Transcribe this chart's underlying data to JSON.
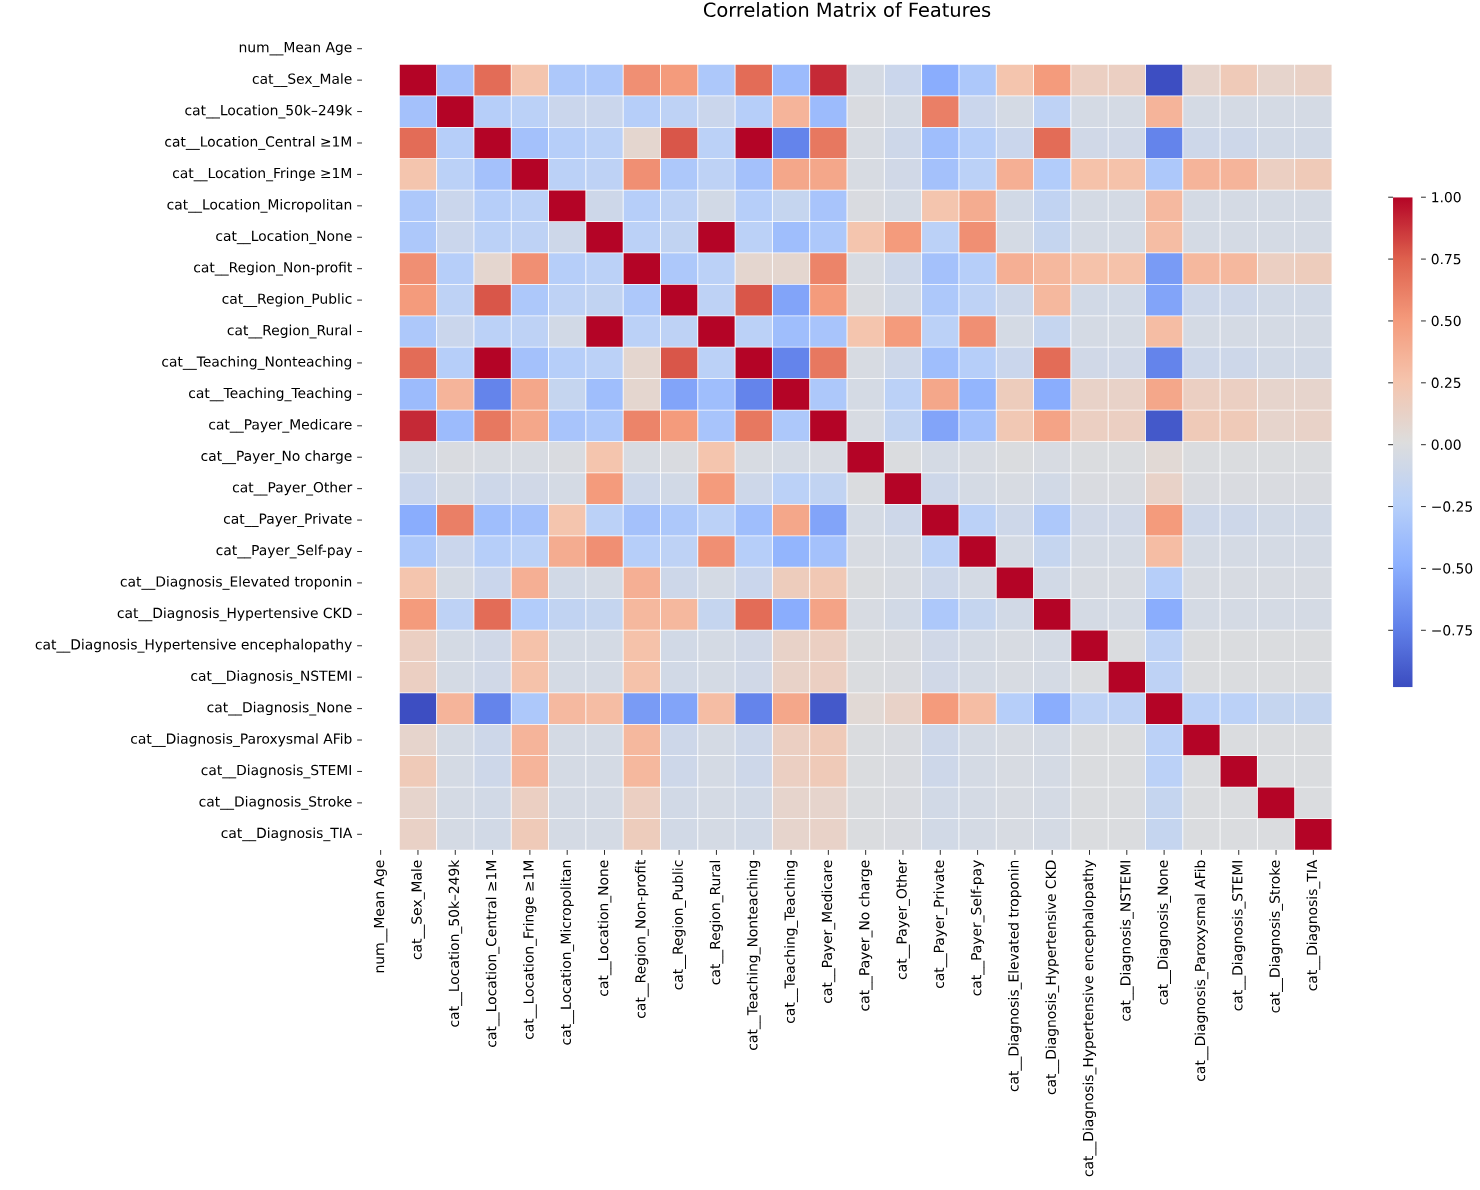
{
  "chart_data": {
    "type": "heatmap",
    "title": "Correlation Matrix of Features",
    "categories": [
      "num__Mean Age",
      "cat__Sex_Male",
      "cat__Location_50k–249k",
      "cat__Location_Central ≥1M",
      "cat__Location_Fringe ≥1M",
      "cat__Location_Micropolitan",
      "cat__Location_None",
      "cat__Region_Non-profit",
      "cat__Region_Public",
      "cat__Region_Rural",
      "cat__Teaching_Nonteaching",
      "cat__Teaching_Teaching",
      "cat__Payer_Medicare",
      "cat__Payer_No charge",
      "cat__Payer_Other",
      "cat__Payer_Private",
      "cat__Payer_Self-pay",
      "cat__Diagnosis_Elevated troponin",
      "cat__Diagnosis_Hypertensive CKD",
      "cat__Diagnosis_Hypertensive encephalopathy",
      "cat__Diagnosis_NSTEMI",
      "cat__Diagnosis_None",
      "cat__Diagnosis_Paroxysmal AFib",
      "cat__Diagnosis_STEMI",
      "cat__Diagnosis_Stroke",
      "cat__Diagnosis_TIA"
    ],
    "y_categories": [
      "num__Mean Age",
      "cat__Sex_Male",
      "cat__Location_50k–249k",
      "cat__Location_Central ≥1M",
      "cat__Location_Fringe ≥1M",
      "cat__Location_Micropolitan",
      "cat__Location_None",
      "cat__Region_Non-profit",
      "cat__Region_Public",
      "cat__Region_Rural",
      "cat__Teaching_Nonteaching",
      "cat__Teaching_Teaching",
      "cat__Payer_Medicare",
      "cat__Payer_No charge",
      "cat__Payer_Other",
      "cat__Payer_Private",
      "cat__Payer_Self-pay",
      "cat__Diagnosis_Elevated troponin",
      "cat__Diagnosis_Hypertensive CKD",
      "cat__Diagnosis_Hypertensive encephalopathy",
      "cat__Diagnosis_NSTEMI",
      "cat__Diagnosis_None",
      "cat__Diagnosis_Paroxysmal AFib",
      "cat__Diagnosis_STEMI",
      "cat__Diagnosis_Stroke",
      "cat__Diagnosis_TIA"
    ],
    "cells": [
      [
        null,
        null,
        null,
        null,
        null,
        null,
        null,
        null,
        null,
        null,
        null,
        null,
        null,
        null,
        null,
        null,
        null,
        null,
        null,
        null,
        null,
        null,
        null,
        null,
        null,
        null
      ],
      [
        null,
        1,
        -0.35,
        0.7,
        0.25,
        -0.3,
        -0.3,
        0.55,
        0.5,
        -0.3,
        0.7,
        -0.4,
        0.9,
        -0.05,
        -0.12,
        -0.5,
        -0.3,
        0.25,
        0.5,
        0.15,
        0.15,
        -0.97,
        0.1,
        0.2,
        0.1,
        0.13
      ],
      [
        null,
        -0.35,
        1,
        -0.25,
        -0.22,
        -0.12,
        -0.12,
        -0.25,
        -0.2,
        -0.12,
        -0.25,
        0.35,
        -0.4,
        -0.02,
        -0.05,
        0.62,
        -0.12,
        -0.05,
        -0.2,
        -0.05,
        -0.05,
        0.35,
        -0.05,
        -0.05,
        -0.05,
        -0.05
      ],
      [
        null,
        0.7,
        -0.25,
        1,
        -0.35,
        -0.25,
        -0.22,
        0.08,
        0.78,
        -0.22,
        1,
        -0.72,
        0.65,
        -0.03,
        -0.1,
        -0.38,
        -0.25,
        -0.12,
        0.7,
        -0.08,
        -0.08,
        -0.72,
        -0.1,
        -0.1,
        -0.07,
        -0.07
      ],
      [
        null,
        0.25,
        -0.22,
        -0.35,
        1,
        -0.22,
        -0.2,
        0.55,
        -0.3,
        -0.2,
        -0.35,
        0.43,
        0.43,
        -0.03,
        -0.08,
        -0.35,
        -0.22,
        0.38,
        -0.27,
        0.27,
        0.27,
        -0.3,
        0.35,
        0.35,
        0.15,
        0.2
      ],
      [
        null,
        -0.3,
        -0.12,
        -0.25,
        -0.22,
        1,
        -0.1,
        -0.25,
        -0.2,
        -0.07,
        -0.25,
        -0.15,
        -0.33,
        -0.02,
        -0.05,
        0.25,
        0.4,
        -0.07,
        -0.18,
        -0.05,
        -0.05,
        0.32,
        -0.05,
        -0.05,
        -0.05,
        -0.05
      ],
      [
        null,
        -0.3,
        -0.12,
        -0.22,
        -0.2,
        -0.1,
        1,
        -0.22,
        -0.18,
        1,
        -0.22,
        -0.38,
        -0.3,
        0.25,
        0.5,
        -0.22,
        0.55,
        -0.05,
        -0.15,
        -0.05,
        -0.05,
        0.3,
        -0.05,
        -0.05,
        -0.05,
        -0.05
      ],
      [
        null,
        0.55,
        -0.25,
        0.08,
        0.55,
        -0.25,
        -0.22,
        1,
        -0.3,
        -0.22,
        0.08,
        0.08,
        0.6,
        -0.03,
        -0.1,
        -0.35,
        -0.25,
        0.38,
        0.33,
        0.27,
        0.27,
        -0.6,
        0.33,
        0.33,
        0.15,
        0.18
      ],
      [
        null,
        0.5,
        -0.2,
        0.78,
        -0.3,
        -0.2,
        -0.18,
        -0.3,
        1,
        -0.2,
        0.78,
        -0.55,
        0.5,
        -0.02,
        -0.07,
        -0.3,
        -0.2,
        -0.1,
        0.33,
        -0.07,
        -0.07,
        -0.55,
        -0.1,
        -0.1,
        -0.07,
        -0.07
      ],
      [
        null,
        -0.3,
        -0.12,
        -0.22,
        -0.2,
        -0.07,
        1,
        -0.22,
        -0.2,
        1,
        -0.22,
        -0.38,
        -0.33,
        0.25,
        0.5,
        -0.22,
        0.55,
        -0.05,
        -0.15,
        -0.05,
        -0.05,
        0.3,
        -0.05,
        -0.05,
        -0.05,
        -0.05
      ],
      [
        null,
        0.7,
        -0.25,
        1,
        -0.35,
        -0.25,
        -0.22,
        0.08,
        0.78,
        -0.22,
        1,
        -0.72,
        0.65,
        -0.03,
        -0.1,
        -0.38,
        -0.25,
        -0.12,
        0.7,
        -0.08,
        -0.08,
        -0.72,
        -0.1,
        -0.1,
        -0.07,
        -0.07
      ],
      [
        null,
        -0.4,
        0.35,
        -0.72,
        0.43,
        -0.15,
        -0.38,
        0.08,
        -0.55,
        -0.38,
        -0.72,
        1,
        -0.3,
        -0.05,
        -0.22,
        0.43,
        -0.45,
        0.18,
        -0.5,
        0.12,
        0.12,
        0.43,
        0.15,
        0.15,
        0.1,
        0.1
      ],
      [
        null,
        0.9,
        -0.4,
        0.65,
        0.43,
        -0.33,
        -0.3,
        0.6,
        0.5,
        -0.33,
        0.65,
        -0.3,
        1,
        -0.03,
        -0.18,
        -0.55,
        -0.35,
        0.22,
        0.45,
        0.15,
        0.15,
        -0.92,
        0.2,
        0.2,
        0.1,
        0.12
      ],
      [
        null,
        -0.05,
        -0.02,
        -0.03,
        -0.03,
        -0.02,
        0.25,
        -0.03,
        -0.02,
        0.25,
        -0.03,
        -0.05,
        -0.03,
        1,
        -0.01,
        -0.05,
        -0.03,
        -0.01,
        -0.03,
        -0.01,
        -0.01,
        0.05,
        -0.01,
        -0.01,
        -0.01,
        -0.01
      ],
      [
        null,
        -0.12,
        -0.05,
        -0.1,
        -0.08,
        -0.05,
        0.5,
        -0.1,
        -0.07,
        0.5,
        -0.1,
        -0.22,
        -0.18,
        -0.01,
        1,
        -0.1,
        -0.05,
        -0.03,
        -0.07,
        -0.02,
        -0.02,
        0.12,
        -0.02,
        -0.02,
        -0.02,
        -0.02
      ],
      [
        null,
        -0.5,
        0.62,
        -0.38,
        -0.35,
        0.25,
        -0.22,
        -0.35,
        -0.3,
        -0.22,
        -0.38,
        0.43,
        -0.55,
        -0.05,
        -0.1,
        1,
        -0.22,
        -0.1,
        -0.3,
        -0.08,
        -0.08,
        0.5,
        -0.1,
        -0.1,
        -0.07,
        -0.07
      ],
      [
        null,
        -0.3,
        -0.12,
        -0.25,
        -0.22,
        0.4,
        0.55,
        -0.25,
        -0.2,
        0.55,
        -0.25,
        -0.45,
        -0.35,
        -0.03,
        -0.05,
        -0.22,
        1,
        -0.05,
        -0.15,
        -0.05,
        -0.05,
        0.3,
        -0.05,
        -0.05,
        -0.05,
        -0.05
      ],
      [
        null,
        0.25,
        -0.05,
        -0.12,
        0.38,
        -0.07,
        -0.05,
        0.38,
        -0.1,
        -0.05,
        -0.12,
        0.18,
        0.22,
        -0.01,
        -0.03,
        -0.1,
        -0.05,
        1,
        -0.07,
        -0.03,
        -0.03,
        -0.25,
        -0.03,
        -0.03,
        -0.03,
        -0.03
      ],
      [
        null,
        0.5,
        -0.2,
        0.7,
        -0.27,
        -0.18,
        -0.15,
        0.33,
        0.33,
        -0.15,
        0.7,
        -0.5,
        0.45,
        -0.03,
        -0.07,
        -0.3,
        -0.15,
        -0.07,
        1,
        -0.05,
        -0.05,
        -0.5,
        -0.05,
        -0.05,
        -0.05,
        -0.05
      ],
      [
        null,
        0.15,
        -0.05,
        -0.08,
        0.27,
        -0.05,
        -0.05,
        0.27,
        -0.07,
        -0.05,
        -0.08,
        0.12,
        0.15,
        -0.01,
        -0.02,
        -0.08,
        -0.05,
        -0.03,
        -0.05,
        1,
        -0.01,
        -0.2,
        -0.01,
        -0.01,
        -0.01,
        -0.01
      ],
      [
        null,
        0.15,
        -0.05,
        -0.08,
        0.27,
        -0.05,
        -0.05,
        0.27,
        -0.07,
        -0.05,
        -0.08,
        0.12,
        0.15,
        -0.01,
        -0.02,
        -0.08,
        -0.05,
        -0.03,
        -0.05,
        -0.01,
        1,
        -0.2,
        -0.01,
        -0.01,
        -0.01,
        -0.01
      ],
      [
        null,
        -0.97,
        0.35,
        -0.72,
        -0.3,
        0.32,
        0.3,
        -0.6,
        -0.55,
        0.3,
        -0.72,
        0.43,
        -0.92,
        0.05,
        0.12,
        0.5,
        0.3,
        -0.25,
        -0.5,
        -0.2,
        -0.2,
        1,
        -0.22,
        -0.22,
        -0.15,
        -0.15
      ],
      [
        null,
        0.1,
        -0.05,
        -0.1,
        0.35,
        -0.05,
        -0.05,
        0.33,
        -0.1,
        -0.05,
        -0.1,
        0.15,
        0.2,
        -0.01,
        -0.02,
        -0.1,
        -0.05,
        -0.03,
        -0.05,
        -0.01,
        -0.01,
        -0.22,
        1,
        -0.01,
        -0.01,
        -0.01
      ],
      [
        null,
        0.2,
        -0.05,
        -0.1,
        0.35,
        -0.05,
        -0.05,
        0.33,
        -0.1,
        -0.05,
        -0.1,
        0.15,
        0.2,
        -0.01,
        -0.02,
        -0.1,
        -0.05,
        -0.03,
        -0.05,
        -0.01,
        -0.01,
        -0.22,
        -0.01,
        1,
        -0.01,
        -0.01
      ],
      [
        null,
        0.1,
        -0.05,
        -0.07,
        0.15,
        -0.05,
        -0.05,
        0.15,
        -0.07,
        -0.05,
        -0.07,
        0.1,
        0.1,
        -0.01,
        -0.02,
        -0.07,
        -0.05,
        -0.03,
        -0.05,
        -0.01,
        -0.01,
        -0.15,
        -0.01,
        -0.01,
        1,
        -0.01
      ],
      [
        null,
        0.13,
        -0.05,
        -0.07,
        0.2,
        -0.05,
        -0.05,
        0.18,
        -0.07,
        -0.05,
        -0.07,
        0.1,
        0.12,
        -0.01,
        -0.02,
        -0.07,
        -0.05,
        -0.03,
        -0.05,
        -0.01,
        -0.01,
        -0.15,
        -0.01,
        -0.01,
        -0.01,
        1
      ]
    ],
    "clim": [
      -0.98,
      1
    ],
    "cticks": [
      {
        "value": -0.75,
        "label": "−0.75"
      },
      {
        "value": -0.5,
        "label": "−0.50"
      },
      {
        "value": -0.25,
        "label": "−0.25"
      },
      {
        "value": 0,
        "label": "0.00"
      },
      {
        "value": 0.25,
        "label": "0.25"
      },
      {
        "value": 0.5,
        "label": "0.50"
      },
      {
        "value": 0.75,
        "label": "0.75"
      },
      {
        "value": 1,
        "label": "1.00"
      }
    ]
  }
}
